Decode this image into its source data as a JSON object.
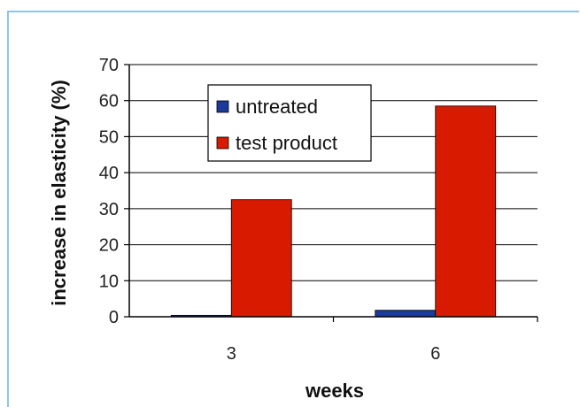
{
  "chart_data": {
    "type": "bar",
    "title": "",
    "xlabel": "weeks",
    "ylabel": "increase in elasticity (%)",
    "categories": [
      "3",
      "6"
    ],
    "ylim": [
      0,
      70
    ],
    "yticks": [
      0,
      10,
      20,
      30,
      40,
      50,
      60,
      70
    ],
    "grid": true,
    "legend_position": "top-center",
    "series": [
      {
        "name": "untreated",
        "values": [
          0.4,
          1.8
        ],
        "color": "#1a3a9c"
      },
      {
        "name": "test product",
        "values": [
          32.5,
          58.5
        ],
        "color": "#d81a00"
      }
    ]
  }
}
